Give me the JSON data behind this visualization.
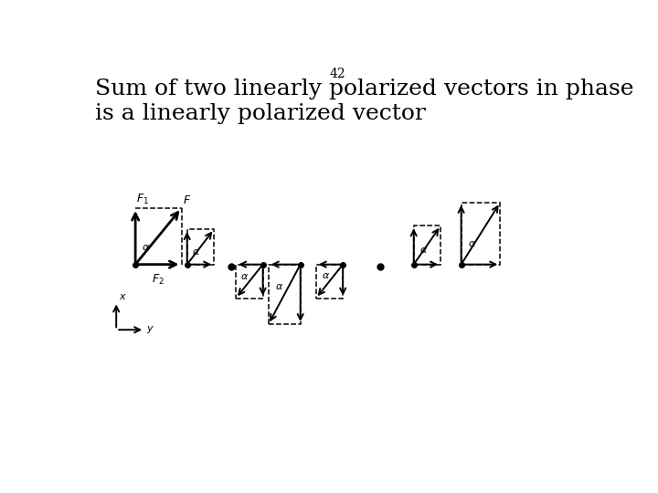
{
  "title_number": "42",
  "title_text": "Sum of two linearly polarized vectors in phase\nis a linearly polarized vector",
  "title_fontsize": 18,
  "number_fontsize": 10,
  "bg_color": "#ffffff",
  "fg_color": "#000000",
  "alpha_label": "α"
}
